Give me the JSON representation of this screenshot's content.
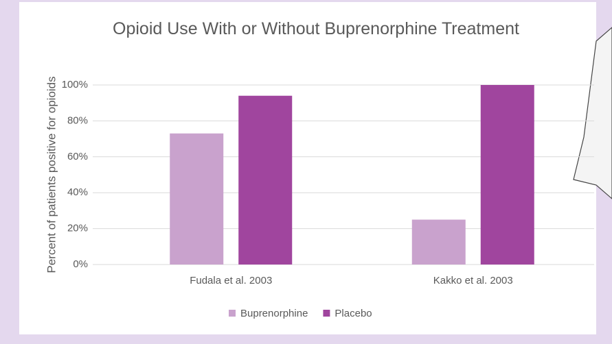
{
  "chart_data": {
    "type": "bar",
    "title": "Opioid Use With or Without Buprenorphine Treatment",
    "y_label": "Percent of patients positive for opioids",
    "categories": [
      "Fudala et al. 2003",
      "Kakko et al. 2003"
    ],
    "series": [
      {
        "name": "Buprenorphine",
        "color": "#c9a2cd",
        "values": [
          73,
          25
        ]
      },
      {
        "name": "Placebo",
        "color": "#a0459e",
        "values": [
          94,
          100
        ]
      }
    ],
    "ylim": [
      0,
      100
    ],
    "yticks": [
      {
        "value": 0,
        "label": "0%"
      },
      {
        "value": 20,
        "label": "20%"
      },
      {
        "value": 40,
        "label": "40%"
      },
      {
        "value": 60,
        "label": "60%"
      },
      {
        "value": 80,
        "label": "80%"
      },
      {
        "value": 100,
        "label": "100%"
      }
    ],
    "grid": true,
    "legend": "bottom"
  }
}
